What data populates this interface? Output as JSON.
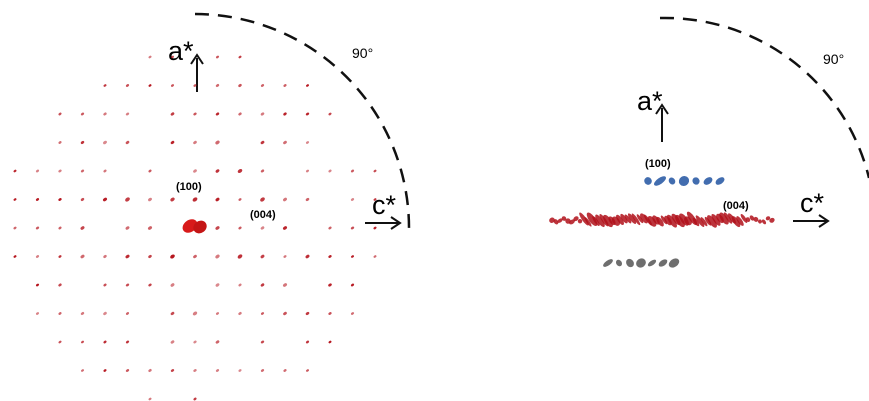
{
  "panels": [
    {
      "axis_a": "a*",
      "angle": "90°",
      "reflection_1": "(100)",
      "reflection_2": "(004)",
      "axis_c": "c*"
    },
    {
      "axis_a": "a*",
      "angle": "90°",
      "reflection_1": "(100)",
      "reflection_2": "(004)",
      "axis_c": "c*"
    }
  ]
}
